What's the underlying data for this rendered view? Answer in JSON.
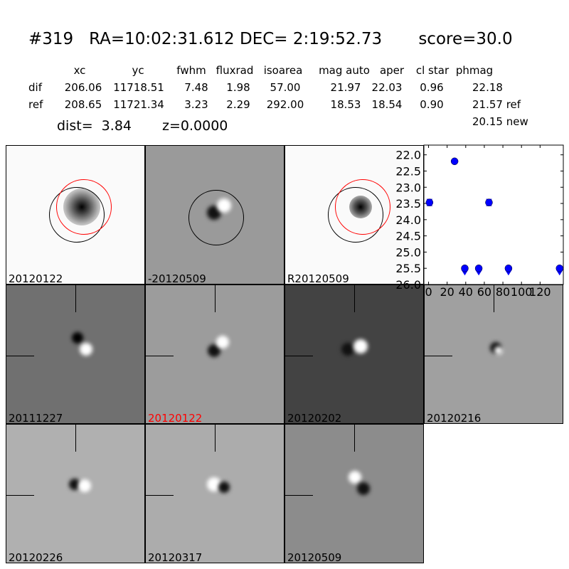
{
  "header": {
    "id": "#319",
    "coords": "RA=10:02:31.612 DEC= 2:19:52.73",
    "score": "score=30.0"
  },
  "table": {
    "columns": [
      "xc",
      "yc",
      "fwhm",
      "fluxrad",
      "isoarea",
      "mag auto",
      "aper",
      "cl star",
      "phmag"
    ],
    "rows": [
      {
        "label": "dif",
        "values": [
          "206.06",
          "11718.51",
          "7.48",
          "1.98",
          "57.00",
          "21.97",
          "22.03",
          "0.96",
          "22.18"
        ]
      },
      {
        "label": "ref",
        "values": [
          "208.65",
          "11721.34",
          "3.23",
          "2.29",
          "292.00",
          "18.53",
          "18.54",
          "0.90",
          "21.57 ref"
        ]
      }
    ],
    "extra": "20.15 new",
    "dist": "dist=  3.84",
    "z": "z=0.0000"
  },
  "panels": [
    {
      "label": "20120122",
      "label_color": "#000000",
      "bg": "#fafafa"
    },
    {
      "label": "-20120509",
      "label_color": "#000000",
      "bg": "#9a9a9a"
    },
    {
      "label": "R20120509",
      "label_color": "#000000",
      "bg": "#fafafa"
    },
    {
      "label": "20111227",
      "label_color": "#000000",
      "bg": "#707070"
    },
    {
      "label": "20120122",
      "label_color": "#ff0000",
      "bg": "#9c9c9c"
    },
    {
      "label": "20120202",
      "label_color": "#000000",
      "bg": "#434343"
    },
    {
      "label": "20120216",
      "label_color": "#000000",
      "bg": "#a0a0a0"
    },
    {
      "label": "20120226",
      "label_color": "#000000",
      "bg": "#b0b0b0"
    },
    {
      "label": "20120317",
      "label_color": "#000000",
      "bg": "#acacac"
    },
    {
      "label": "20120509",
      "label_color": "#000000",
      "bg": "#8c8c8c"
    }
  ],
  "chart_data": {
    "type": "scatter",
    "xlim": [
      -5,
      145
    ],
    "ylim": [
      26.0,
      21.7
    ],
    "y_inverted": true,
    "xticks": [
      "0",
      "20",
      "40",
      "60",
      "80",
      "100",
      "120"
    ],
    "xtick_values": [
      0,
      20,
      40,
      60,
      80,
      100,
      120
    ],
    "yticks": [
      "22.0",
      "22.5",
      "23.0",
      "23.5",
      "24.0",
      "24.5",
      "25.0",
      "25.5",
      "26.0"
    ],
    "ytick_values": [
      22.0,
      22.5,
      23.0,
      23.5,
      24.0,
      24.5,
      25.0,
      25.5,
      26.0
    ],
    "color": "#0000ff",
    "points": [
      {
        "x": 1,
        "y": 23.47,
        "err": 0.1,
        "upper_limit": false
      },
      {
        "x": 28,
        "y": 22.2,
        "err": 0.03,
        "upper_limit": false
      },
      {
        "x": 39,
        "y": 25.5,
        "err": 0,
        "upper_limit": true
      },
      {
        "x": 54,
        "y": 25.5,
        "err": 0,
        "upper_limit": true
      },
      {
        "x": 65,
        "y": 23.47,
        "err": 0.1,
        "upper_limit": false
      },
      {
        "x": 86,
        "y": 25.5,
        "err": 0,
        "upper_limit": true
      },
      {
        "x": 141,
        "y": 25.5,
        "err": 0,
        "upper_limit": true
      }
    ]
  }
}
